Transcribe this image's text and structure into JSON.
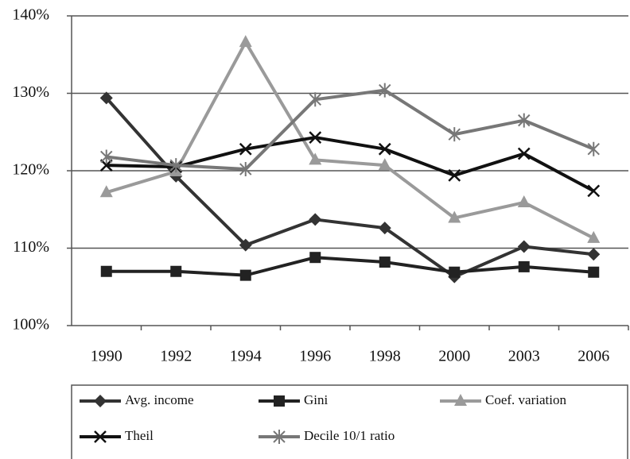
{
  "chart_data": {
    "type": "line",
    "categories": [
      "1990",
      "1992",
      "1994",
      "1996",
      "1998",
      "2000",
      "2003",
      "2006"
    ],
    "ylim": [
      100,
      140
    ],
    "yticks": [
      {
        "value": 100,
        "label": "100%"
      },
      {
        "value": 110,
        "label": "110%"
      },
      {
        "value": 120,
        "label": "120%"
      },
      {
        "value": 130,
        "label": "130%"
      },
      {
        "value": 140,
        "label": "140%"
      }
    ],
    "grid": true,
    "legend": "bottom",
    "series": [
      {
        "name": "Avg. income",
        "color": "#333333",
        "marker": "diamond",
        "values": [
          129.4,
          119.3,
          110.4,
          113.7,
          112.6,
          106.3,
          110.2,
          109.2
        ]
      },
      {
        "name": "Gini",
        "color": "#222222",
        "marker": "square",
        "values": [
          107.0,
          107.0,
          106.5,
          108.8,
          108.2,
          106.9,
          107.6,
          106.9
        ]
      },
      {
        "name": "Coef. variation",
        "color": "#9a9a9a",
        "marker": "triangle",
        "values": [
          117.2,
          119.9,
          136.6,
          121.4,
          120.7,
          113.9,
          115.9,
          111.3
        ]
      },
      {
        "name": "Theil",
        "color": "#111111",
        "marker": "x",
        "values": [
          120.7,
          120.5,
          122.8,
          124.3,
          122.8,
          119.4,
          122.2,
          117.4
        ]
      },
      {
        "name": "Decile 10/1 ratio",
        "color": "#777777",
        "marker": "star",
        "values": [
          121.8,
          120.7,
          120.2,
          129.2,
          130.4,
          124.7,
          126.5,
          122.8
        ]
      }
    ]
  }
}
